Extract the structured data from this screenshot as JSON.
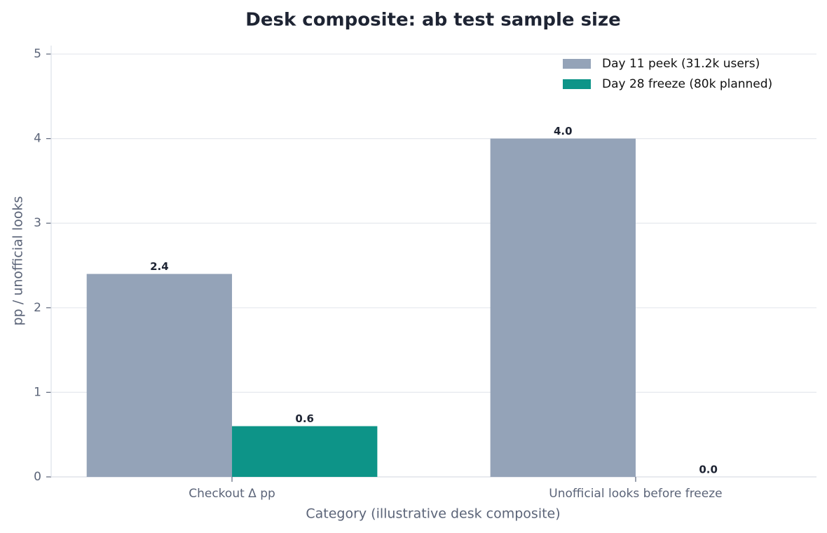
{
  "chart_data": {
    "type": "bar",
    "title": "Desk composite: ab test sample size",
    "xlabel": "Category (illustrative desk composite)",
    "ylabel": "pp / unofficial looks",
    "categories": [
      "Checkout Δ pp",
      "Unofficial looks before freeze"
    ],
    "series": [
      {
        "name": "Day 11 peek (31.2k users)",
        "color": "#94a3b8",
        "values": [
          2.4,
          4
        ],
        "value_labels": [
          "2.4",
          "4.0"
        ]
      },
      {
        "name": "Day 28 freeze (80k planned)",
        "color": "#0d9488",
        "values": [
          0.6,
          0
        ],
        "value_labels": [
          "0.6",
          "0.0"
        ]
      }
    ],
    "ylim": [
      0,
      5.1
    ],
    "yticks": [
      0,
      1,
      2,
      3,
      4,
      5
    ],
    "grid": true,
    "legend": "upper right"
  }
}
